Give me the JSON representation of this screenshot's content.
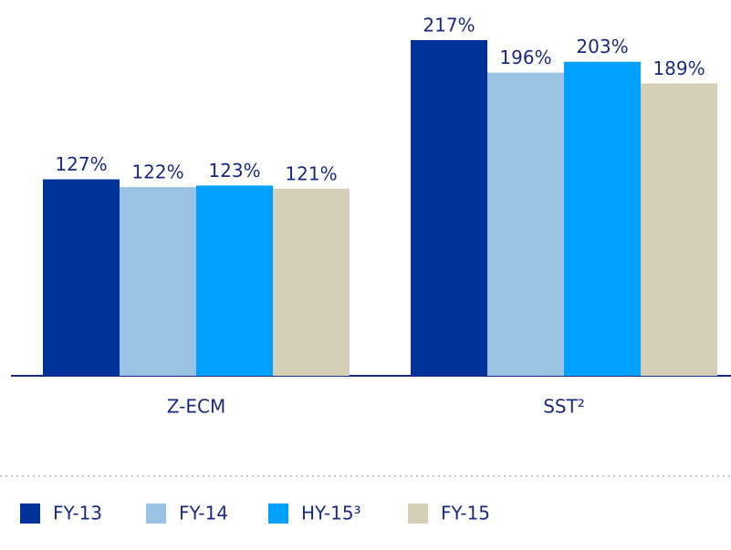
{
  "chart_data": {
    "type": "bar",
    "categories": [
      "Z-ECM",
      "SST²"
    ],
    "series": [
      {
        "name": "FY-13",
        "color": "#003399",
        "values": [
          127,
          217
        ],
        "value_labels": [
          "127%",
          "217%"
        ]
      },
      {
        "name": "FY-14",
        "color": "#99c2e3",
        "values": [
          122,
          196
        ],
        "value_labels": [
          "122%",
          "196%"
        ]
      },
      {
        "name": "HY-15³",
        "color": "#00a0ff",
        "values": [
          123,
          203
        ],
        "value_labels": [
          "123%",
          "203%"
        ]
      },
      {
        "name": "FY-15",
        "color": "#d6cfb7",
        "values": [
          121,
          189
        ],
        "value_labels": [
          "121%",
          "189%"
        ]
      }
    ],
    "legend": "bottom"
  }
}
